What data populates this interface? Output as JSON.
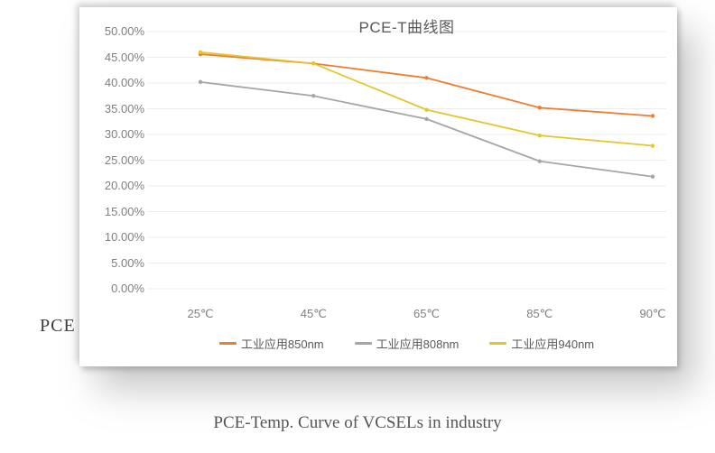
{
  "page": {
    "pce_axis_label": "PCE",
    "caption": "PCE-Temp. Curve of VCSELs in industry"
  },
  "chart_data": {
    "type": "line",
    "title": "PCE-T曲线图",
    "xlabel": "",
    "ylabel": "PCE",
    "categories": [
      "25℃",
      "45℃",
      "65℃",
      "85℃",
      "90℃"
    ],
    "y_ticks": [
      "50.00%",
      "45.00%",
      "40.00%",
      "35.00%",
      "30.00%",
      "25.00%",
      "20.00%",
      "15.00%",
      "10.00%",
      "5.00%",
      "0.00%"
    ],
    "ylim": [
      0,
      50
    ],
    "grid": true,
    "legend_position": "bottom",
    "series": [
      {
        "name": "工业应用850nm",
        "color": "#ED7D31",
        "values": [
          45.6,
          43.8,
          41.0,
          35.2,
          33.6
        ]
      },
      {
        "name": "工业应用808nm",
        "color": "#A6A6A6",
        "values": [
          40.2,
          37.5,
          33.0,
          24.8,
          21.8
        ]
      },
      {
        "name": "工业应用940nm",
        "color": "#E2C72E",
        "values": [
          46.0,
          43.8,
          34.8,
          29.8,
          27.8
        ]
      }
    ]
  }
}
